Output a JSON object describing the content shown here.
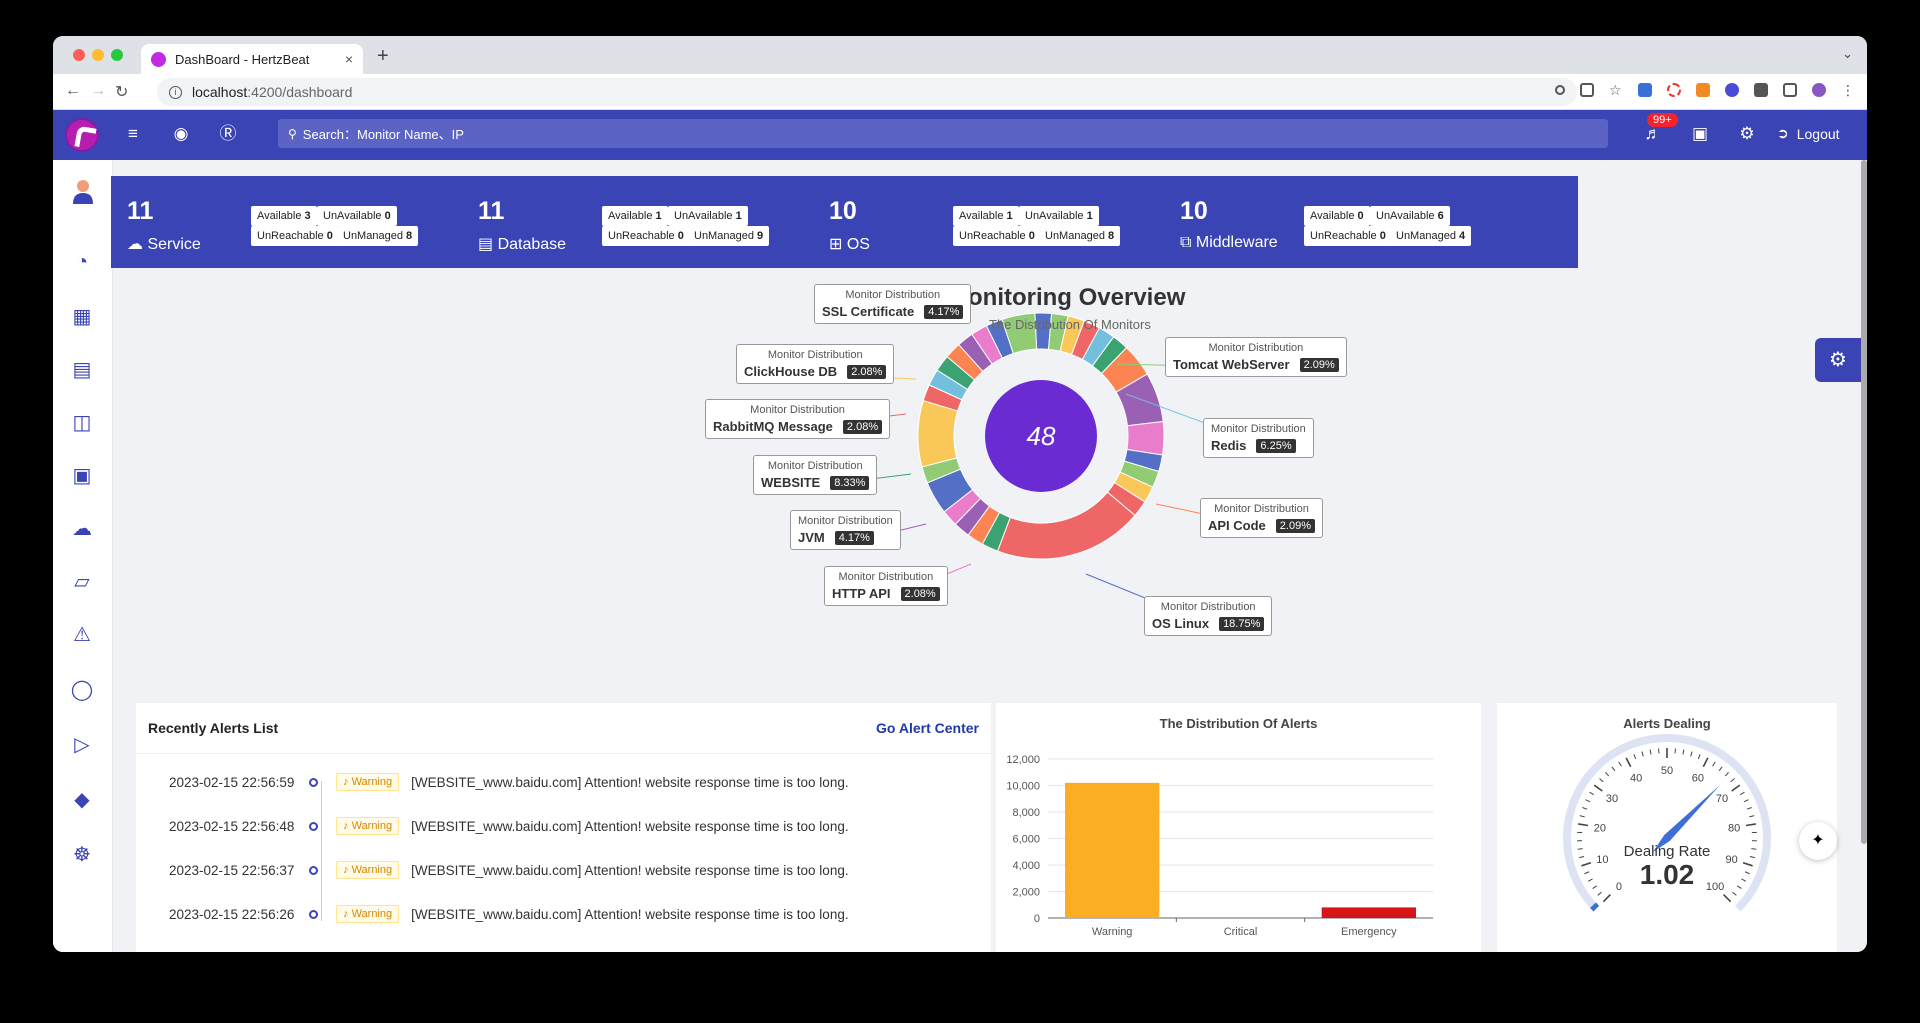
{
  "browser": {
    "tab_title": "DashBoard - HertzBeat",
    "tab_close": "×",
    "new_tab": "+",
    "url_host": "localhost",
    "url_rest": ":4200/dashboard"
  },
  "header": {
    "search_placeholder": "Search：Monitor Name、IP",
    "notification_badge": "99+",
    "logout_label": "Logout"
  },
  "cards": [
    {
      "count": "11",
      "label": "Service",
      "icon": "cloud-icon",
      "available": "3",
      "unavailable": "0",
      "unreachable": "0",
      "unmanaged": "8"
    },
    {
      "count": "11",
      "label": "Database",
      "icon": "database-icon",
      "available": "1",
      "unavailable": "1",
      "unreachable": "0",
      "unmanaged": "9"
    },
    {
      "count": "10",
      "label": "OS",
      "icon": "windows-icon",
      "available": "1",
      "unavailable": "1",
      "unreachable": "0",
      "unmanaged": "8"
    },
    {
      "count": "10",
      "label": "Middleware",
      "icon": "appstore-icon",
      "available": "0",
      "unavailable": "6",
      "unreachable": "0",
      "unmanaged": "4"
    }
  ],
  "card_labels": {
    "available": "Available",
    "unavailable": "UnAvailable",
    "unreachable": "UnReachable",
    "unmanaged": "UnManaged"
  },
  "overview": {
    "title": "Monitoring Overview",
    "subtitle": "The Distribution Of Monitors",
    "total": "48",
    "tooltip_header": "Monitor Distribution",
    "tooltips": [
      {
        "name": "SSL Certificate",
        "value": "4.17%"
      },
      {
        "name": "Tomcat WebServer",
        "value": "2.09%"
      },
      {
        "name": "ClickHouse DB",
        "value": "2.08%"
      },
      {
        "name": "RabbitMQ Message",
        "value": "2.08%"
      },
      {
        "name": "Redis",
        "value": "6.25%"
      },
      {
        "name": "WEBSITE",
        "value": "8.33%"
      },
      {
        "name": "API Code",
        "value": "2.09%"
      },
      {
        "name": "JVM",
        "value": "4.17%"
      },
      {
        "name": "HTTP API",
        "value": "2.08%"
      },
      {
        "name": "OS Linux",
        "value": "18.75%"
      }
    ]
  },
  "chart_data": [
    {
      "type": "pie",
      "title": "Monitoring Overview",
      "subtitle": "The Distribution Of Monitors",
      "center_label": "48",
      "slices": [
        {
          "name": "SSL Certificate",
          "percent": 4.17
        },
        {
          "name": "Tomcat WebServer",
          "percent": 2.09
        },
        {
          "name": "ClickHouse DB",
          "percent": 2.08
        },
        {
          "name": "RabbitMQ Message",
          "percent": 2.08
        },
        {
          "name": "Redis",
          "percent": 6.25
        },
        {
          "name": "WEBSITE",
          "percent": 8.33
        },
        {
          "name": "API Code",
          "percent": 2.09
        },
        {
          "name": "JVM",
          "percent": 4.17
        },
        {
          "name": "HTTP API",
          "percent": 2.08
        },
        {
          "name": "OS Linux",
          "percent": 18.75
        }
      ]
    },
    {
      "type": "bar",
      "title": "The Distribution Of Alerts",
      "categories": [
        "Warning",
        "Critical",
        "Emergency"
      ],
      "values": [
        10200,
        0,
        800
      ],
      "colors": [
        "#fbad24",
        "#fb7a3a",
        "#d71518"
      ],
      "ylim": [
        0,
        12000
      ],
      "yticks": [
        "0",
        "2,000",
        "4,000",
        "6,000",
        "8,000",
        "10,000",
        "12,000"
      ]
    },
    {
      "type": "gauge",
      "title": "Alerts Dealing",
      "label": "Dealing Rate",
      "value": 1.02,
      "display_value": "1.02",
      "min": 0,
      "max": 100,
      "ticks": [
        "0",
        "10",
        "20",
        "30",
        "40",
        "50",
        "60",
        "70",
        "80",
        "90",
        "100"
      ]
    }
  ],
  "alerts": {
    "title": "Recently Alerts List",
    "link": "Go Alert Center",
    "items": [
      {
        "time": "2023-02-15 22:56:59",
        "tag": "Warning",
        "text": "[WEBSITE_www.baidu.com] Attention! website response time is too long."
      },
      {
        "time": "2023-02-15 22:56:48",
        "tag": "Warning",
        "text": "[WEBSITE_www.baidu.com] Attention! website response time is too long."
      },
      {
        "time": "2023-02-15 22:56:37",
        "tag": "Warning",
        "text": "[WEBSITE_www.baidu.com] Attention! website response time is too long."
      },
      {
        "time": "2023-02-15 22:56:26",
        "tag": "Warning",
        "text": "[WEBSITE_www.baidu.com] Attention! website response time is too long."
      }
    ]
  },
  "colors": {
    "primary": "#3a44b4",
    "center_circle": "#6a2bd3"
  }
}
